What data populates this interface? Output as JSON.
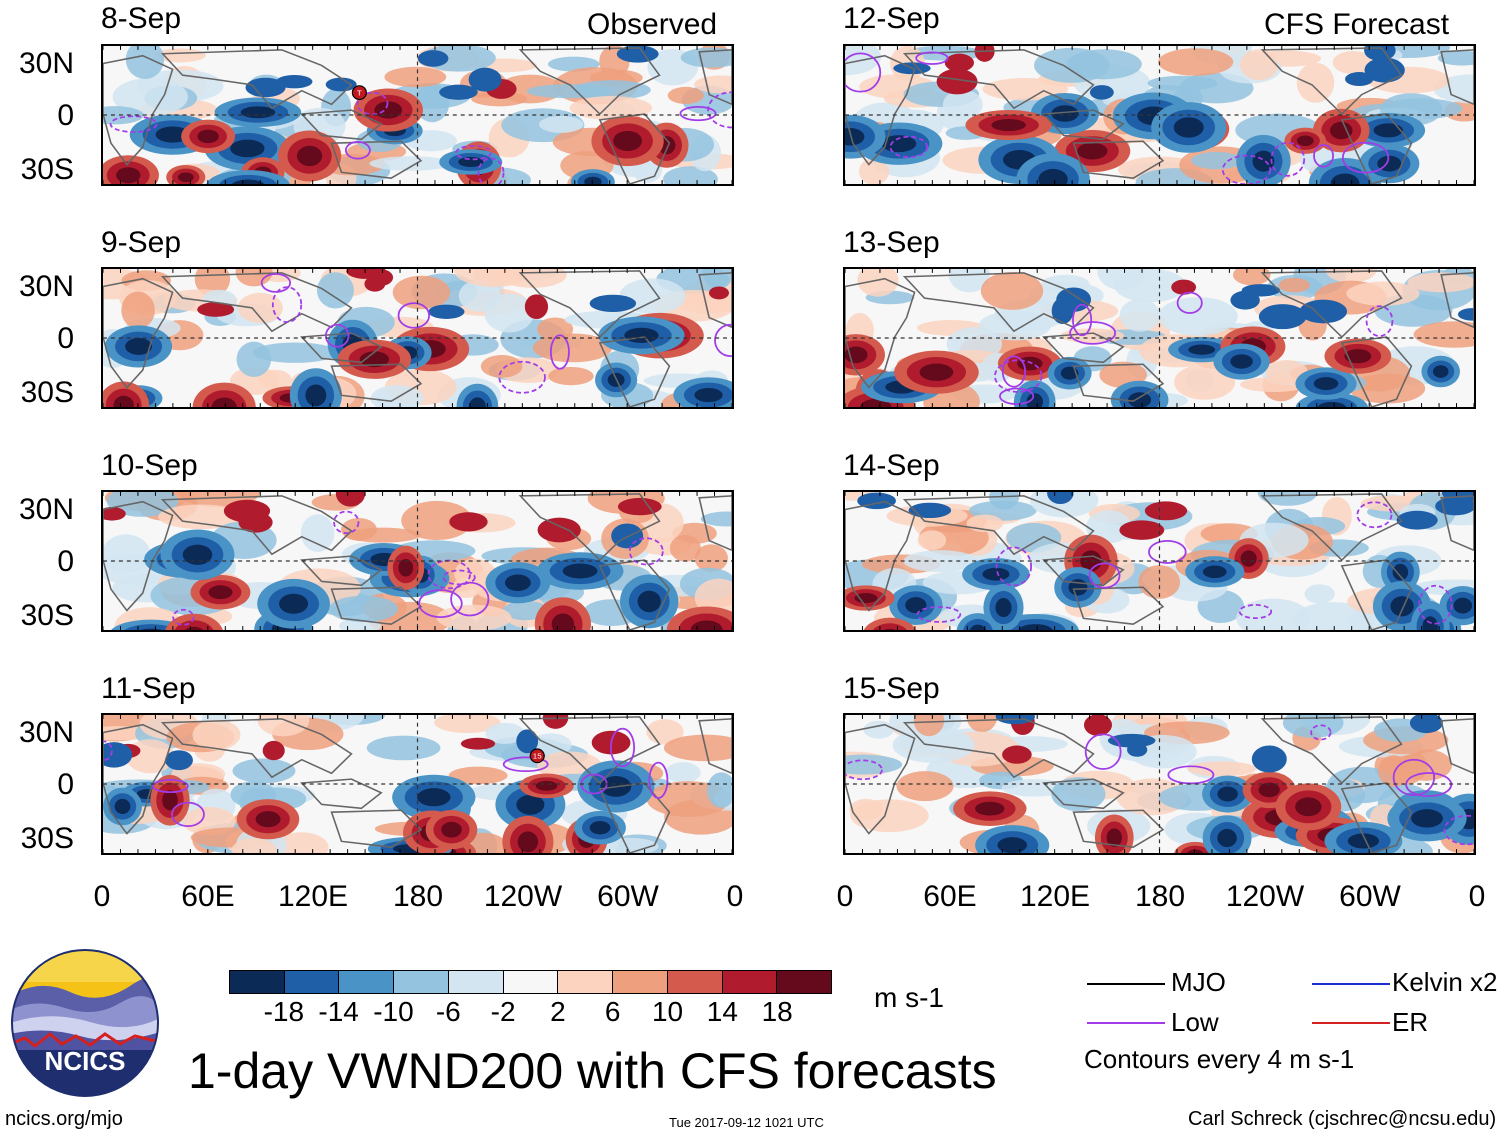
{
  "columns": {
    "left_title": "Observed",
    "right_title": "CFS Forecast"
  },
  "panels": [
    {
      "date": "8-Sep",
      "source": "observed"
    },
    {
      "date": "9-Sep",
      "source": "observed"
    },
    {
      "date": "10-Sep",
      "source": "observed"
    },
    {
      "date": "11-Sep",
      "source": "observed"
    },
    {
      "date": "12-Sep",
      "source": "forecast"
    },
    {
      "date": "13-Sep",
      "source": "forecast"
    },
    {
      "date": "14-Sep",
      "source": "forecast"
    },
    {
      "date": "15-Sep",
      "source": "forecast"
    }
  ],
  "lat_labels": [
    "30N",
    "0",
    "30S"
  ],
  "lon_labels": [
    "0",
    "60E",
    "120E",
    "180",
    "120W",
    "60W",
    "0"
  ],
  "storm_markers": [
    {
      "panel": "8-Sep",
      "label": "T"
    },
    {
      "panel": "11-Sep",
      "label": "15"
    }
  ],
  "colorbar": {
    "labels": [
      "-18",
      "-14",
      "-10",
      "-6",
      "-2",
      "2",
      "6",
      "10",
      "14",
      "18"
    ],
    "colors": [
      "#0b2a55",
      "#1f5fa8",
      "#4a93c6",
      "#93c3df",
      "#d2e5f1",
      "#f7f7f7",
      "#fbd3bf",
      "#eea07e",
      "#d35a4d",
      "#b01c2e",
      "#650a1c"
    ],
    "units": "m s-1"
  },
  "legend": {
    "items": [
      {
        "name": "MJO",
        "color": "#000000"
      },
      {
        "name": "Kelvin x2",
        "color": "#1a2fd0"
      },
      {
        "name": "Low",
        "color": "#a23ce8"
      },
      {
        "name": "ER",
        "color": "#d42020"
      }
    ],
    "contour_note": "Contours every 4 m s-1"
  },
  "title": "1-day VWND200 with CFS forecasts",
  "logo_text": "NCICS",
  "footer": {
    "url": "ncics.org/mjo",
    "timestamp": "Tue 2017-09-12 1021 UTC",
    "author": "Carl Schreck (cjschrec@ncsu.edu)"
  }
}
